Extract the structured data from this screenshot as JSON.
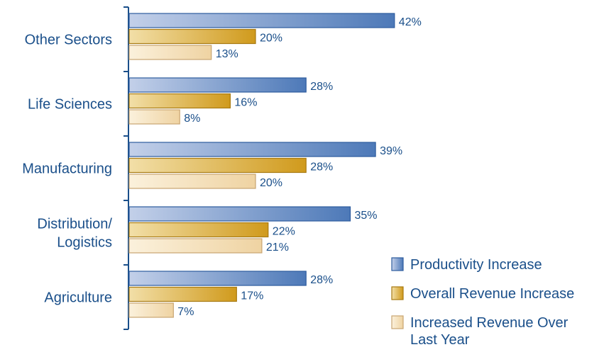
{
  "chart_data": {
    "type": "bar",
    "orientation": "horizontal",
    "categories": [
      "Other Sectors",
      "Life Sciences",
      "Manufacturing",
      "Distribution/\nLogistics",
      "Agriculture"
    ],
    "series": [
      {
        "name": "Productivity Increase",
        "values": [
          42,
          28,
          39,
          35,
          28
        ],
        "color": "#5b84bf"
      },
      {
        "name": "Overall Revenue Increase",
        "values": [
          20,
          16,
          28,
          22,
          17
        ],
        "color": "#d9a62e"
      },
      {
        "name": "Increased Revenue Over Last Year",
        "values": [
          13,
          8,
          20,
          21,
          7
        ],
        "color": "#f5dcb0"
      }
    ],
    "value_suffix": "%",
    "xlim": [
      0,
      50
    ],
    "grid": false,
    "legend": "bottom-right",
    "legend_lines": [
      [
        "Productivity Increase"
      ],
      [
        "Overall Revenue Increase"
      ],
      [
        "Increased Revenue Over",
        "Last Year"
      ]
    ]
  }
}
